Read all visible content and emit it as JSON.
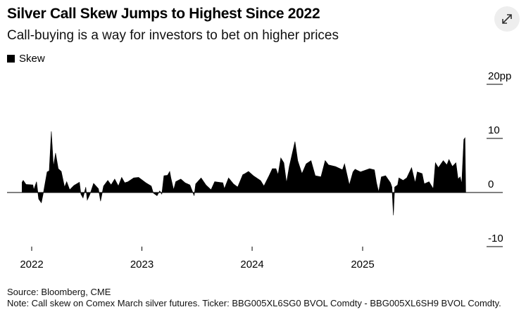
{
  "header": {
    "title": "Silver Call Skew Jumps to Highest Since 2022",
    "subtitle": "Call-buying is a way for investors to bet on higher prices",
    "expand_icon": "expand-arrows-icon"
  },
  "footer": {
    "source": "Source: Bloomberg, CME",
    "note": "Note: Call skew on Comex March silver futures. Ticker: BBG005XL6SG0 BVOL Comdty - BBG005XL6SH9 BVOL Comdty."
  },
  "chart_data": {
    "type": "area",
    "title": "Silver Call Skew Jumps to Highest Since 2022",
    "subtitle": "Call-buying is a way for investors to bet on higher prices",
    "legend": [
      "Skew"
    ],
    "legend_position": "top-left",
    "color": "#000000",
    "y_ticks": [
      {
        "value": 20,
        "label": "20pp"
      },
      {
        "value": 10,
        "label": "10"
      },
      {
        "value": 0,
        "label": "0"
      },
      {
        "value": -10,
        "label": "-10"
      }
    ],
    "x_ticks": [
      "2022",
      "2023",
      "2024",
      "2025"
    ],
    "ylim": [
      -10,
      20
    ],
    "xlim": [
      "2021-11-30",
      "2025-12-06"
    ],
    "y_axis_position": "right",
    "grid": false,
    "series": [
      {
        "name": "Skew",
        "points": [
          [
            "2021-11-30",
            1.9
          ],
          [
            "2021-12-04",
            2.25
          ],
          [
            "2021-12-13",
            1.5
          ],
          [
            "2022-01-05",
            1.4
          ],
          [
            "2022-01-08",
            0.5
          ],
          [
            "2022-01-17",
            2.0
          ],
          [
            "2022-01-24",
            -1.2
          ],
          [
            "2022-02-02",
            -1.9
          ],
          [
            "2022-02-09",
            0.0
          ],
          [
            "2022-02-21",
            3.8
          ],
          [
            "2022-02-28",
            4.0
          ],
          [
            "2022-03-07",
            11.3
          ],
          [
            "2022-03-14",
            4.8
          ],
          [
            "2022-03-21",
            7.3
          ],
          [
            "2022-03-30",
            4.4
          ],
          [
            "2022-04-09",
            3.9
          ],
          [
            "2022-04-20",
            1.0
          ],
          [
            "2022-04-27",
            2.0
          ],
          [
            "2022-05-07",
            0.5
          ],
          [
            "2022-05-21",
            1.3
          ],
          [
            "2022-06-08",
            1.9
          ],
          [
            "2022-06-13",
            -0.3
          ],
          [
            "2022-06-20",
            -1.0
          ],
          [
            "2022-06-29",
            1.0
          ],
          [
            "2022-07-04",
            -1.4
          ],
          [
            "2022-07-13",
            -0.3
          ],
          [
            "2022-07-25",
            1.7
          ],
          [
            "2022-08-10",
            0.7
          ],
          [
            "2022-08-17",
            -1.6
          ],
          [
            "2022-08-27",
            1.2
          ],
          [
            "2022-09-10",
            2.25
          ],
          [
            "2022-09-21",
            1.4
          ],
          [
            "2022-10-03",
            2.5
          ],
          [
            "2022-10-15",
            1.2
          ],
          [
            "2022-10-26",
            2.8
          ],
          [
            "2022-11-05",
            1.8
          ],
          [
            "2022-11-16",
            2.0
          ],
          [
            "2022-12-05",
            2.7
          ],
          [
            "2022-12-21",
            2.8
          ],
          [
            "2023-01-14",
            1.8
          ],
          [
            "2023-02-01",
            1.2
          ],
          [
            "2023-02-08",
            -0.1
          ],
          [
            "2023-02-20",
            -0.6
          ],
          [
            "2023-03-01",
            0.3
          ],
          [
            "2023-03-08",
            -0.3
          ],
          [
            "2023-03-15",
            3.1
          ],
          [
            "2023-03-27",
            3.2
          ],
          [
            "2023-04-03",
            3.9
          ],
          [
            "2023-04-07",
            2.7
          ],
          [
            "2023-04-16",
            0.5
          ],
          [
            "2023-04-23",
            2.0
          ],
          [
            "2023-05-10",
            2.5
          ],
          [
            "2023-05-24",
            1.8
          ],
          [
            "2023-06-09",
            1.4
          ],
          [
            "2023-06-23",
            -0.6
          ],
          [
            "2023-06-28",
            1.6
          ],
          [
            "2023-07-16",
            2.7
          ],
          [
            "2023-08-01",
            1.4
          ],
          [
            "2023-08-18",
            0.5
          ],
          [
            "2023-08-30",
            2.0
          ],
          [
            "2023-09-26",
            1.8
          ],
          [
            "2023-10-01",
            0.7
          ],
          [
            "2023-10-15",
            2.7
          ],
          [
            "2023-10-31",
            1.6
          ],
          [
            "2023-11-14",
            1.0
          ],
          [
            "2023-12-01",
            3.3
          ],
          [
            "2023-12-08",
            3.5
          ],
          [
            "2023-12-20",
            3.9
          ],
          [
            "2024-01-05",
            3.1
          ],
          [
            "2024-01-29",
            2.2
          ],
          [
            "2024-02-09",
            1.2
          ],
          [
            "2024-02-26",
            3.1
          ],
          [
            "2024-03-08",
            4.4
          ],
          [
            "2024-03-20",
            4.4
          ],
          [
            "2024-03-27",
            3.3
          ],
          [
            "2024-04-05",
            6.4
          ],
          [
            "2024-04-15",
            5.5
          ],
          [
            "2024-04-24",
            1.8
          ],
          [
            "2024-05-03",
            4.8
          ],
          [
            "2024-05-22",
            9.4
          ],
          [
            "2024-05-31",
            5.9
          ],
          [
            "2024-06-14",
            3.5
          ],
          [
            "2024-06-28",
            5.3
          ],
          [
            "2024-07-14",
            5.9
          ],
          [
            "2024-07-28",
            3.1
          ],
          [
            "2024-08-16",
            2.9
          ],
          [
            "2024-08-30",
            5.9
          ],
          [
            "2024-09-10",
            5.1
          ],
          [
            "2024-10-03",
            4.8
          ],
          [
            "2024-10-26",
            4.2
          ],
          [
            "2024-11-02",
            5.3
          ],
          [
            "2024-11-18",
            1.4
          ],
          [
            "2024-11-30",
            3.8
          ],
          [
            "2024-12-07",
            4.3
          ],
          [
            "2024-12-25",
            3.8
          ],
          [
            "2025-01-24",
            4.4
          ],
          [
            "2025-02-09",
            4.2
          ],
          [
            "2025-02-16",
            1.8
          ],
          [
            "2025-02-23",
            0.1
          ],
          [
            "2025-03-04",
            2.9
          ],
          [
            "2025-03-18",
            3.1
          ],
          [
            "2025-04-03",
            1.8
          ],
          [
            "2025-04-08",
            1.0
          ],
          [
            "2025-04-13",
            -4.2
          ],
          [
            "2025-04-17",
            1.0
          ],
          [
            "2025-04-27",
            1.4
          ],
          [
            "2025-05-01",
            2.7
          ],
          [
            "2025-05-15",
            2.25
          ],
          [
            "2025-05-27",
            2.7
          ],
          [
            "2025-06-12",
            4.6
          ],
          [
            "2025-06-24",
            1.8
          ],
          [
            "2025-07-01",
            3.8
          ],
          [
            "2025-07-17",
            3.5
          ],
          [
            "2025-07-24",
            1.6
          ],
          [
            "2025-08-09",
            2.0
          ],
          [
            "2025-08-23",
            0.7
          ],
          [
            "2025-08-30",
            5.5
          ],
          [
            "2025-09-09",
            4.6
          ],
          [
            "2025-09-25",
            5.9
          ],
          [
            "2025-10-07",
            5.1
          ],
          [
            "2025-10-14",
            6.1
          ],
          [
            "2025-10-25",
            4.8
          ],
          [
            "2025-11-06",
            5.5
          ],
          [
            "2025-11-13",
            2.5
          ],
          [
            "2025-11-20",
            2.9
          ],
          [
            "2025-11-25",
            1.6
          ],
          [
            "2025-12-02",
            9.8
          ],
          [
            "2025-12-06",
            10.1
          ]
        ]
      }
    ]
  }
}
